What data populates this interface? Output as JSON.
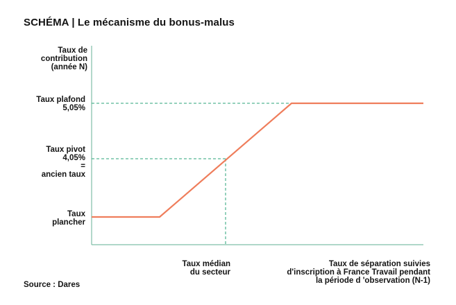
{
  "title": "SCHÉMA | Le mécanisme du bonus-malus",
  "y_axis_label": [
    "Taux de",
    "contribution",
    "(année N)"
  ],
  "levels": {
    "plafond": [
      "Taux plafond",
      "5,05%"
    ],
    "pivot": [
      "Taux pivot",
      "4,05%",
      "=",
      "ancien taux"
    ],
    "plancher": [
      "Taux",
      "plancher"
    ]
  },
  "x_labels": {
    "median": [
      "Taux médian",
      "du secteur"
    ],
    "axis": [
      "Taux de séparation suivies",
      "d'inscription à France Travail pendant",
      "la période d 'observation (N-1)"
    ]
  },
  "source": "Source : Dares",
  "colors": {
    "curve": "#ef7d5b",
    "guides": "#2aa37a",
    "axes": "#7fbfa6",
    "text": "#141414"
  }
}
